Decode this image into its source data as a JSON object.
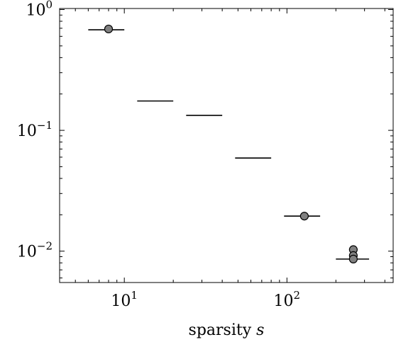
{
  "chart_data": {
    "type": "boxplot",
    "xlabel": {
      "text": "sparsity ",
      "var": "s"
    },
    "yscale": "log",
    "xscale": "log",
    "xlim": [
      4,
      450
    ],
    "ylim": [
      0.0055,
      1.02
    ],
    "grid": false,
    "x_major_ticks": [
      {
        "base": "10",
        "exp": "1",
        "value": 10
      },
      {
        "base": "10",
        "exp": "2",
        "value": 100
      }
    ],
    "y_major_ticks": [
      {
        "base": "10",
        "exp": "0",
        "value": 1
      },
      {
        "base": "10",
        "exp": "−1",
        "value": 0.1
      },
      {
        "base": "10",
        "exp": "−2",
        "value": 0.01
      }
    ],
    "series": [
      {
        "x": 8,
        "x_low": 6,
        "x_high": 10,
        "median": 0.68,
        "outliers": [
          0.69
        ]
      },
      {
        "x": 16,
        "x_low": 12,
        "x_high": 20,
        "median": 0.175,
        "outliers": []
      },
      {
        "x": 32,
        "x_low": 24,
        "x_high": 40,
        "median": 0.133,
        "outliers": []
      },
      {
        "x": 64,
        "x_low": 48,
        "x_high": 80,
        "median": 0.059,
        "outliers": []
      },
      {
        "x": 128,
        "x_low": 96,
        "x_high": 160,
        "median": 0.0195,
        "outliers": [
          0.0195
        ]
      },
      {
        "x": 256,
        "x_low": 200,
        "x_high": 320,
        "median": 0.0086,
        "outliers": [
          0.0103,
          0.0092,
          0.0086
        ]
      }
    ],
    "colors": {
      "line": "#000000",
      "marker_fill": "#808080",
      "marker_stroke": "#000000"
    }
  }
}
